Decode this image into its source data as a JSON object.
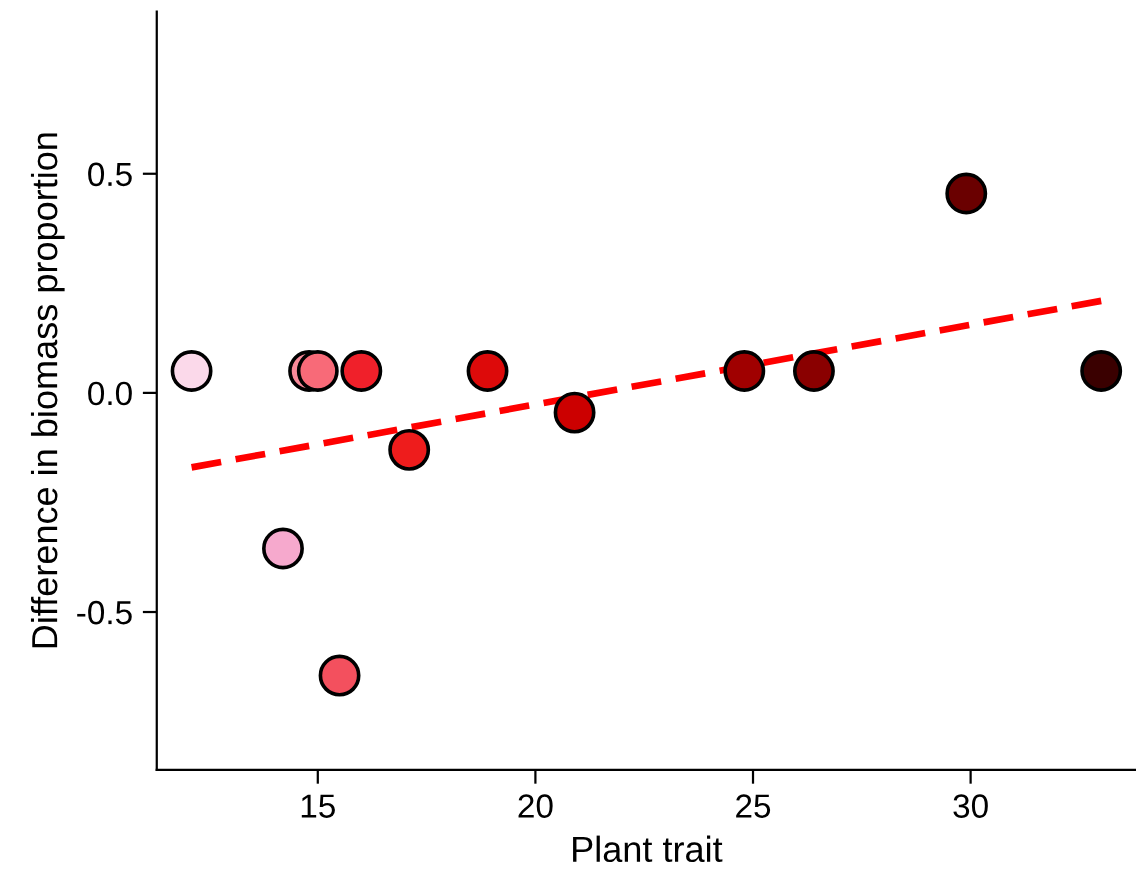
{
  "chart_data": {
    "type": "scatter",
    "xlabel": "Plant trait",
    "ylabel": "Difference in biomass proportion",
    "xlim": [
      11.3,
      33.8
    ],
    "ylim": [
      -0.86,
      0.87
    ],
    "xticks": [
      15,
      20,
      25,
      30
    ],
    "yticks": [
      {
        "value": -0.5,
        "label": "-0.5"
      },
      {
        "value": 0,
        "label": "0.0"
      },
      {
        "value": 0.5,
        "label": "0.5"
      }
    ],
    "grid": false,
    "marker": "circle",
    "series": [
      {
        "x": [
          12.1,
          14.2,
          14.8,
          15.0,
          15.5,
          16.0,
          17.1,
          18.9,
          20.9,
          24.8,
          26.4,
          29.9,
          33.0
        ],
        "values": [
          0.05,
          -0.355,
          0.05,
          0.05,
          -0.645,
          0.05,
          -0.13,
          0.05,
          -0.045,
          0.05,
          0.05,
          0.455,
          0.05
        ],
        "colors": [
          "#fbd9ea",
          "#f6a9cd",
          "#f88a9a",
          "#f86a78",
          "#f3505e",
          "#f0202a",
          "#ee1c1c",
          "#dd0a0a",
          "#cc0000",
          "#a00000",
          "#8a0000",
          "#6a0000",
          "#3a0000"
        ]
      },
      {
        "type": "line",
        "x": [
          12.1,
          33.0
        ],
        "values": [
          -0.17,
          0.21
        ],
        "color": "#ff0000",
        "line_style": "dashed",
        "marker": "none"
      }
    ]
  }
}
